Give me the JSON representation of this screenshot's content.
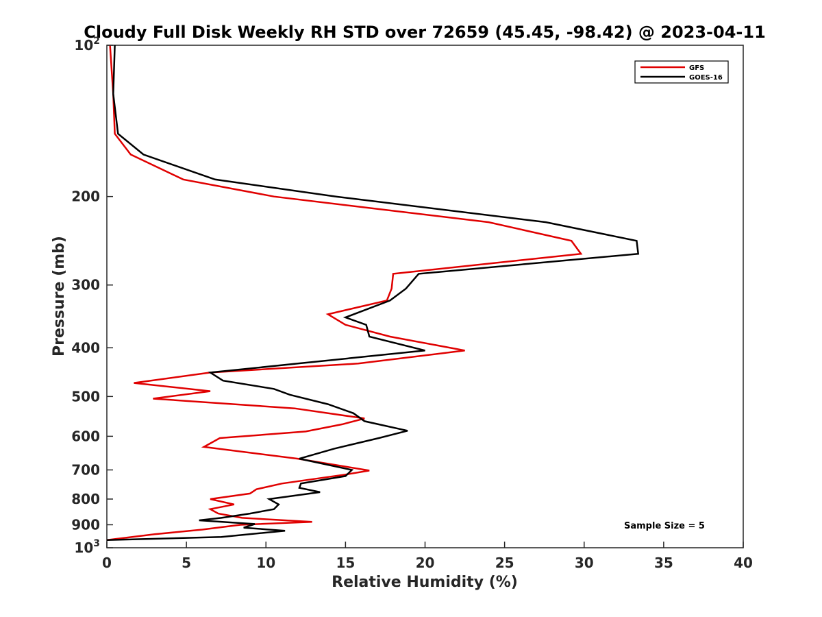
{
  "chart_data": {
    "type": "line",
    "title": "Cloudy Full Disk Weekly RH STD over 72659 (45.45, -98.42) @ 2023-04-11",
    "xlabel": "Relative Humidity (%)",
    "ylabel": "Pressure (mb)",
    "xlim": [
      0,
      40
    ],
    "ylim": [
      100,
      1000
    ],
    "yscale": "log",
    "y_reversed": true,
    "x_ticks": [
      "0",
      "5",
      "10",
      "15",
      "20",
      "25",
      "30",
      "35",
      "40"
    ],
    "y_ticks": [
      {
        "value": 100,
        "base": "10",
        "exp": "2"
      },
      {
        "value": 200,
        "label": "200"
      },
      {
        "value": 300,
        "label": "300"
      },
      {
        "value": 400,
        "label": "400"
      },
      {
        "value": 500,
        "label": "500"
      },
      {
        "value": 600,
        "label": "600"
      },
      {
        "value": 700,
        "label": "700"
      },
      {
        "value": 800,
        "label": "800"
      },
      {
        "value": 900,
        "label": "900"
      },
      {
        "value": 1000,
        "base": "10",
        "exp": "3"
      }
    ],
    "grid": false,
    "legend_position": "top-right",
    "annotation": "Sample Size = 5",
    "series": [
      {
        "name": "GFS",
        "color": "#e00000",
        "points": [
          [
            0.2,
            100
          ],
          [
            0.4,
            125
          ],
          [
            0.5,
            150
          ],
          [
            1.5,
            165
          ],
          [
            4.8,
            185
          ],
          [
            10.5,
            200
          ],
          [
            24.0,
            225
          ],
          [
            29.2,
            245
          ],
          [
            29.8,
            260
          ],
          [
            18.0,
            285
          ],
          [
            17.9,
            305
          ],
          [
            17.6,
            322
          ],
          [
            13.9,
            343
          ],
          [
            15.0,
            360
          ],
          [
            17.8,
            380
          ],
          [
            22.5,
            405
          ],
          [
            15.8,
            430
          ],
          [
            6.5,
            448
          ],
          [
            1.7,
            470
          ],
          [
            6.5,
            488
          ],
          [
            2.9,
            505
          ],
          [
            11.8,
            528
          ],
          [
            16.2,
            553
          ],
          [
            14.8,
            568
          ],
          [
            12.5,
            587
          ],
          [
            7.1,
            605
          ],
          [
            6.1,
            630
          ],
          [
            12.0,
            665
          ],
          [
            16.5,
            702
          ],
          [
            15.0,
            715
          ],
          [
            11.0,
            745
          ],
          [
            9.4,
            765
          ],
          [
            9.0,
            780
          ],
          [
            6.5,
            800
          ],
          [
            8.0,
            820
          ],
          [
            6.5,
            838
          ],
          [
            7.0,
            855
          ],
          [
            8.5,
            872
          ],
          [
            12.9,
            888
          ],
          [
            8.4,
            900
          ],
          [
            6.0,
            920
          ],
          [
            3.0,
            940
          ],
          [
            0.0,
            965
          ]
        ]
      },
      {
        "name": "GOES-16",
        "color": "#000000",
        "points": [
          [
            0.5,
            100
          ],
          [
            0.4,
            125
          ],
          [
            0.7,
            150
          ],
          [
            2.3,
            165
          ],
          [
            6.8,
            185
          ],
          [
            14.4,
            200
          ],
          [
            27.6,
            225
          ],
          [
            33.3,
            245
          ],
          [
            33.4,
            260
          ],
          [
            19.6,
            285
          ],
          [
            18.8,
            305
          ],
          [
            17.8,
            322
          ],
          [
            15.0,
            348
          ],
          [
            16.3,
            360
          ],
          [
            16.5,
            380
          ],
          [
            20.0,
            405
          ],
          [
            12.0,
            430
          ],
          [
            6.5,
            448
          ],
          [
            7.3,
            465
          ],
          [
            10.5,
            483
          ],
          [
            11.5,
            496
          ],
          [
            13.9,
            518
          ],
          [
            15.5,
            540
          ],
          [
            16.2,
            560
          ],
          [
            18.9,
            585
          ],
          [
            17.1,
            605
          ],
          [
            14.3,
            635
          ],
          [
            12.1,
            665
          ],
          [
            15.4,
            700
          ],
          [
            15.0,
            720
          ],
          [
            12.2,
            745
          ],
          [
            12.1,
            760
          ],
          [
            13.4,
            775
          ],
          [
            10.2,
            800
          ],
          [
            10.8,
            820
          ],
          [
            10.5,
            838
          ],
          [
            9.0,
            855
          ],
          [
            7.2,
            872
          ],
          [
            5.8,
            882
          ],
          [
            9.3,
            897
          ],
          [
            8.6,
            912
          ],
          [
            11.2,
            925
          ],
          [
            7.2,
            952
          ],
          [
            0.0,
            965
          ]
        ]
      }
    ]
  }
}
